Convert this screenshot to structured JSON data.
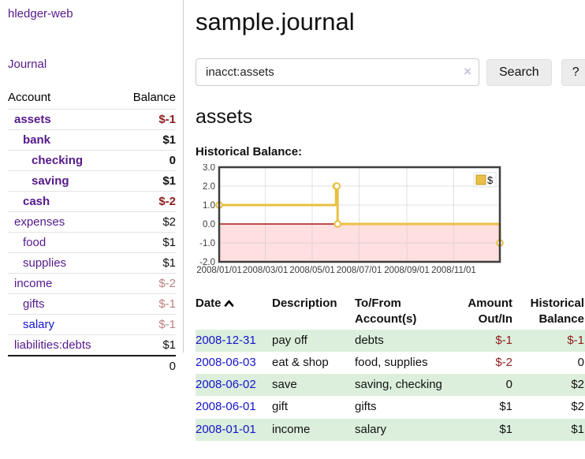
{
  "brand": "hledger-web",
  "nav": {
    "journal": "Journal"
  },
  "sidebar": {
    "col_account": "Account",
    "col_balance": "Balance",
    "accounts": [
      {
        "name": "assets",
        "balance": "$-1"
      },
      {
        "name": "bank",
        "balance": "$1"
      },
      {
        "name": "checking",
        "balance": "0"
      },
      {
        "name": "saving",
        "balance": "$1"
      },
      {
        "name": "cash",
        "balance": "$-2"
      },
      {
        "name": "expenses",
        "balance": "$2"
      },
      {
        "name": "food",
        "balance": "$1"
      },
      {
        "name": "supplies",
        "balance": "$1"
      },
      {
        "name": "income",
        "balance": "$-2"
      },
      {
        "name": "gifts",
        "balance": "$-1"
      },
      {
        "name": "salary",
        "balance": "$-1"
      },
      {
        "name": "liabilities:debts",
        "balance": "$1"
      }
    ],
    "total": "0"
  },
  "main": {
    "title": "sample.journal",
    "search": {
      "value": "inacct:assets",
      "clear": "×",
      "button": "Search",
      "help": "?"
    },
    "heading": "assets",
    "chart_title": "Historical Balance:"
  },
  "chart_data": {
    "type": "line",
    "step": true,
    "title": "Historical Balance",
    "series": [
      {
        "name": "$",
        "color": "#e9c044",
        "points": [
          [
            "2008-01-01",
            1
          ],
          [
            "2008-06-01",
            2
          ],
          [
            "2008-06-02",
            2
          ],
          [
            "2008-06-03",
            0
          ],
          [
            "2008-12-31",
            -1
          ]
        ]
      }
    ],
    "x_range": [
      "2008-01-01",
      "2008-12-31"
    ],
    "ylim": [
      -2,
      3
    ],
    "yticks": [
      3,
      2,
      1,
      0,
      -1,
      -2
    ],
    "ytick_labels": [
      "3.0",
      "2.0",
      "1.0",
      "0.0",
      "-1.0",
      "-2.0"
    ],
    "xticks": [
      "2008/01/01",
      "2008/03/01",
      "2008/05/01",
      "2008/07/01",
      "2008/09/01",
      "2008/11/01"
    ],
    "legend": {
      "label": "$",
      "position": "top-right"
    },
    "grid": true,
    "negative_region_fill": "#ffdfdf",
    "zero_line_color": "#a91616"
  },
  "register": {
    "headers": {
      "date": "Date",
      "description": "Description",
      "accounts": "To/From Account(s)",
      "amount": "Amount Out/In",
      "balance": "Historical Balance"
    },
    "rows": [
      {
        "date": "2008-12-31",
        "description": "pay off",
        "accounts": "debts",
        "amount": "$-1",
        "balance": "$-1"
      },
      {
        "date": "2008-06-03",
        "description": "eat & shop",
        "accounts": "food, supplies",
        "amount": "$-2",
        "balance": "0"
      },
      {
        "date": "2008-06-02",
        "description": "save",
        "accounts": "saving, checking",
        "amount": "0",
        "balance": "$2"
      },
      {
        "date": "2008-06-01",
        "description": "gift",
        "accounts": "gifts",
        "amount": "$1",
        "balance": "$2"
      },
      {
        "date": "2008-01-01",
        "description": "income",
        "accounts": "salary",
        "amount": "$1",
        "balance": "$1"
      }
    ]
  }
}
